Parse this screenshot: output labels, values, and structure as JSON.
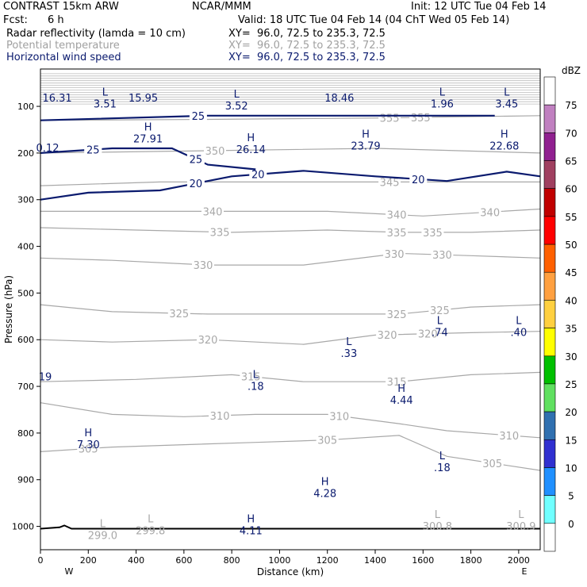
{
  "header": {
    "model": "CONTRAST 15km ARW",
    "center": "NCAR/MMM",
    "init": "Init: 12 UTC Tue 04 Feb 14",
    "fcst_label": "Fcst:",
    "fcst_value": "6 h",
    "valid": "Valid: 18 UTC Tue 04 Feb 14 (04 ChT Wed 05 Feb 14)",
    "fields": [
      {
        "label": "Radar reflectivity (lamda = 10 cm)",
        "xy": "XY=  96.0, 72.5 to 235.3, 72.5"
      },
      {
        "label": "Potential temperature",
        "xy": "XY=  96.0, 72.5 to 235.3, 72.5"
      },
      {
        "label": "Horizontal wind speed",
        "xy": "XY=  96.0, 72.5 to 235.3, 72.5"
      }
    ]
  },
  "colors": {
    "wind_contour": "#0a1a6e",
    "theta_contour": "#a8a8a8",
    "ground": "#000000"
  },
  "chart_data": {
    "type": "contour",
    "xlabel": "Distance (km)",
    "ylabel": "Pressure (hPa)",
    "xlim": [
      0,
      2090
    ],
    "ylim": [
      1050,
      20
    ],
    "xticks": [
      0,
      200,
      400,
      600,
      800,
      1000,
      1200,
      1400,
      1600,
      1800,
      2000
    ],
    "yticks": [
      100,
      200,
      300,
      400,
      500,
      600,
      700,
      800,
      900,
      1000
    ],
    "x_end_labels": {
      "left": "W",
      "right": "E"
    },
    "theta_contours": [
      {
        "value": 305,
        "points": [
          [
            0,
            840
          ],
          [
            300,
            830
          ],
          [
            600,
            825
          ],
          [
            900,
            820
          ],
          [
            1200,
            815
          ],
          [
            1500,
            805
          ],
          [
            1700,
            850
          ],
          [
            2090,
            880
          ]
        ],
        "labels": [
          [
            200,
            "305"
          ],
          [
            1200,
            "305"
          ],
          [
            1890,
            "305"
          ]
        ]
      },
      {
        "value": 310,
        "points": [
          [
            0,
            735
          ],
          [
            300,
            760
          ],
          [
            600,
            765
          ],
          [
            900,
            760
          ],
          [
            1200,
            760
          ],
          [
            1500,
            780
          ],
          [
            1700,
            795
          ],
          [
            2090,
            810
          ]
        ],
        "labels": [
          [
            750,
            "310"
          ],
          [
            1250,
            "310"
          ],
          [
            1960,
            "310"
          ]
        ]
      },
      {
        "value": 315,
        "points": [
          [
            0,
            690
          ],
          [
            400,
            685
          ],
          [
            800,
            675
          ],
          [
            1100,
            690
          ],
          [
            1500,
            690
          ],
          [
            1800,
            675
          ],
          [
            2090,
            670
          ]
        ],
        "labels": [
          [
            880,
            "315"
          ],
          [
            1490,
            "315"
          ]
        ]
      },
      {
        "value": 320,
        "points": [
          [
            0,
            600
          ],
          [
            300,
            605
          ],
          [
            700,
            600
          ],
          [
            1100,
            610
          ],
          [
            1400,
            590
          ],
          [
            1800,
            585
          ],
          [
            2090,
            582
          ]
        ],
        "labels": [
          [
            700,
            "320"
          ],
          [
            1450,
            "320"
          ],
          [
            1620,
            "320"
          ]
        ]
      },
      {
        "value": 325,
        "points": [
          [
            0,
            525
          ],
          [
            300,
            540
          ],
          [
            700,
            545
          ],
          [
            1100,
            545
          ],
          [
            1500,
            545
          ],
          [
            1800,
            530
          ],
          [
            2090,
            525
          ]
        ],
        "labels": [
          [
            580,
            "325"
          ],
          [
            1490,
            "325"
          ],
          [
            1670,
            "325"
          ]
        ]
      },
      {
        "value": 330,
        "points": [
          [
            0,
            425
          ],
          [
            300,
            430
          ],
          [
            700,
            440
          ],
          [
            1100,
            440
          ],
          [
            1500,
            415
          ],
          [
            1800,
            420
          ],
          [
            2090,
            425
          ]
        ],
        "labels": [
          [
            680,
            "330"
          ],
          [
            1480,
            "330"
          ],
          [
            1680,
            "330"
          ]
        ]
      },
      {
        "value": 335,
        "points": [
          [
            0,
            360
          ],
          [
            400,
            365
          ],
          [
            800,
            370
          ],
          [
            1200,
            365
          ],
          [
            1500,
            370
          ],
          [
            1800,
            370
          ],
          [
            2090,
            365
          ]
        ],
        "labels": [
          [
            750,
            "335"
          ],
          [
            1490,
            "335"
          ],
          [
            1640,
            "335"
          ]
        ]
      },
      {
        "value": 340,
        "points": [
          [
            0,
            325
          ],
          [
            400,
            325
          ],
          [
            800,
            325
          ],
          [
            1200,
            325
          ],
          [
            1600,
            335
          ],
          [
            2090,
            320
          ]
        ],
        "labels": [
          [
            720,
            "340"
          ],
          [
            1490,
            "340"
          ],
          [
            1880,
            "340"
          ]
        ]
      },
      {
        "value": 345,
        "points": [
          [
            0,
            270
          ],
          [
            500,
            262
          ],
          [
            1000,
            262
          ],
          [
            1500,
            262
          ],
          [
            2090,
            262
          ]
        ],
        "labels": [
          [
            1460,
            "345"
          ]
        ]
      },
      {
        "value": 350,
        "points": [
          [
            0,
            200
          ],
          [
            700,
            195
          ],
          [
            1400,
            190
          ],
          [
            2090,
            200
          ]
        ],
        "labels": [
          [
            730,
            "350"
          ]
        ]
      },
      {
        "value": 355,
        "points": [
          [
            0,
            130
          ],
          [
            700,
            128
          ],
          [
            1400,
            125
          ],
          [
            2090,
            120
          ]
        ],
        "labels": [
          [
            1460,
            "355"
          ],
          [
            1590,
            "355"
          ]
        ]
      }
    ],
    "wind_contours": [
      {
        "value": 20,
        "points": [
          [
            0,
            300
          ],
          [
            200,
            285
          ],
          [
            500,
            280
          ],
          [
            800,
            250
          ],
          [
            1100,
            238
          ],
          [
            1400,
            250
          ],
          [
            1700,
            260
          ],
          [
            1950,
            240
          ],
          [
            2090,
            250
          ]
        ],
        "labels": [
          [
            650,
            "20"
          ],
          [
            910,
            "20"
          ],
          [
            1580,
            "20"
          ]
        ]
      },
      {
        "value": 25,
        "points": [
          [
            0,
            200
          ],
          [
            300,
            190
          ],
          [
            550,
            190
          ],
          [
            700,
            225
          ],
          [
            900,
            235
          ]
        ],
        "labels": [
          [
            220,
            "25"
          ],
          [
            650,
            "25"
          ],
          [
            220,
            "25"
          ]
        ]
      },
      {
        "value": 25,
        "points": [
          [
            0,
            130
          ],
          [
            700,
            120
          ],
          [
            1300,
            120
          ],
          [
            1900,
            120
          ]
        ],
        "labels": [
          [
            660,
            "25"
          ]
        ]
      }
    ],
    "extrema_labels": [
      {
        "kind": "",
        "value": "16.31",
        "x": 70,
        "p": 68
      },
      {
        "kind": "L",
        "value": "3.51",
        "x": 270,
        "p": 80
      },
      {
        "kind": "",
        "value": "15.95",
        "x": 430,
        "p": 68
      },
      {
        "kind": "L",
        "value": "3.52",
        "x": 820,
        "p": 85
      },
      {
        "kind": "",
        "value": "18.46",
        "x": 1250,
        "p": 68
      },
      {
        "kind": "L",
        "value": "1.96",
        "x": 1680,
        "p": 80
      },
      {
        "kind": "L",
        "value": "3.45",
        "x": 1950,
        "p": 80
      },
      {
        "kind": "",
        "value": "0.12",
        "x": 30,
        "p": 175
      },
      {
        "kind": "H",
        "value": "27.91",
        "x": 450,
        "p": 155
      },
      {
        "kind": "H",
        "value": "26.14",
        "x": 880,
        "p": 178
      },
      {
        "kind": "H",
        "value": "23.79",
        "x": 1360,
        "p": 170
      },
      {
        "kind": "H",
        "value": "22.68",
        "x": 1940,
        "p": 170
      },
      {
        "kind": "L",
        "value": ".74",
        "x": 1670,
        "p": 570
      },
      {
        "kind": "L",
        "value": ".40",
        "x": 2000,
        "p": 570
      },
      {
        "kind": "L",
        "value": ".33",
        "x": 1290,
        "p": 615
      },
      {
        "kind": "",
        "value": "19",
        "x": 20,
        "p": 665
      },
      {
        "kind": "L",
        "value": ".18",
        "x": 900,
        "p": 685
      },
      {
        "kind": "H",
        "value": "4.44",
        "x": 1510,
        "p": 715
      },
      {
        "kind": "H",
        "value": "7.30",
        "x": 200,
        "p": 810
      },
      {
        "kind": "L",
        "value": ".18",
        "x": 1680,
        "p": 860
      },
      {
        "kind": "H",
        "value": "4.28",
        "x": 1190,
        "p": 915
      },
      {
        "kind": "L",
        "value": "299.0",
        "x": 260,
        "p": 1005
      },
      {
        "kind": "L",
        "value": "299.8",
        "x": 460,
        "p": 995
      },
      {
        "kind": "H",
        "value": "4.11",
        "x": 880,
        "p": 995
      },
      {
        "kind": "L",
        "value": "300.8",
        "x": 1660,
        "p": 985
      },
      {
        "kind": "L",
        "value": "300.9",
        "x": 2010,
        "p": 985
      }
    ],
    "ground_pressure": [
      [
        0,
        1005
      ],
      [
        80,
        1002
      ],
      [
        100,
        998
      ],
      [
        130,
        1005
      ],
      [
        2090,
        1005
      ]
    ],
    "colorbar": {
      "title": "dBZ",
      "labels": [
        "75",
        "70",
        "65",
        "60",
        "55",
        "50",
        "45",
        "40",
        "35",
        "30",
        "25",
        "20",
        "15",
        "10",
        "5",
        "0"
      ],
      "colors": [
        "#ffffff",
        "#c080c0",
        "#902090",
        "#a04060",
        "#c00000",
        "#ff0000",
        "#ff6000",
        "#ffa040",
        "#ffd040",
        "#ffff00",
        "#00c000",
        "#60e060",
        "#3070b0",
        "#3030d0",
        "#2090ff",
        "#70ffff",
        "#ffffff"
      ]
    }
  }
}
